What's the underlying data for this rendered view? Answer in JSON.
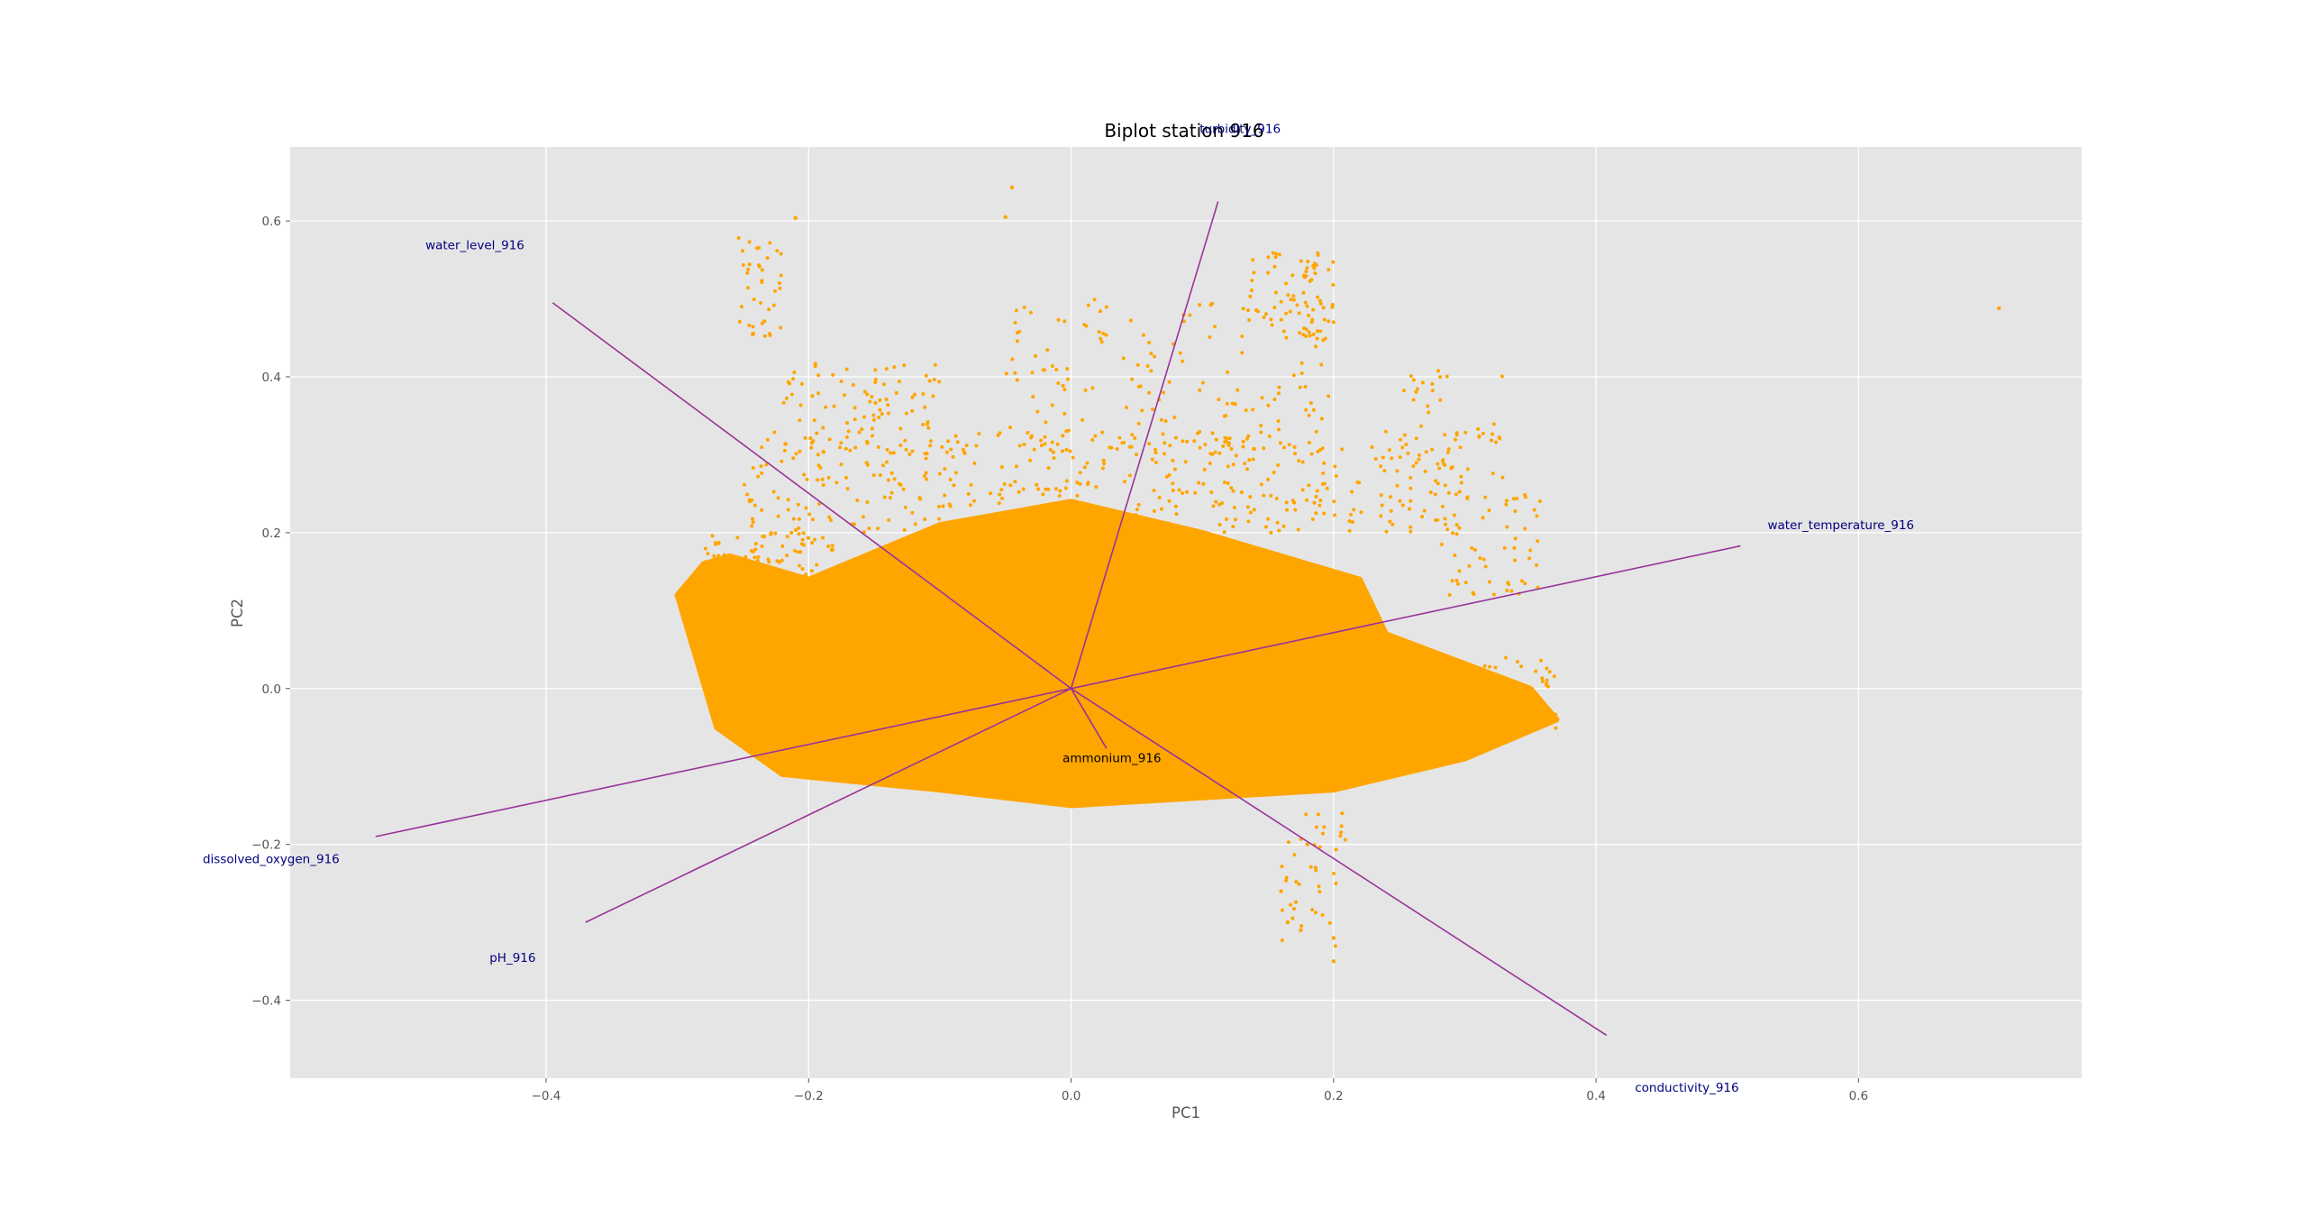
{
  "chart_data": {
    "type": "scatter",
    "title": "Biplot station 916",
    "xlabel": "PC1",
    "ylabel": "PC2",
    "xlim": [
      -0.595,
      0.77
    ],
    "ylim": [
      -0.5,
      0.695
    ],
    "xticks": [
      -0.4,
      -0.2,
      0.0,
      0.2,
      0.4,
      0.6
    ],
    "yticks": [
      -0.4,
      -0.2,
      0.0,
      0.2,
      0.4,
      0.6
    ],
    "xtick_labels": [
      "−0.4",
      "−0.2",
      "0.0",
      "0.2",
      "0.4",
      "0.6"
    ],
    "ytick_labels": [
      "−0.4",
      "−0.2",
      "0.0",
      "0.2",
      "0.4",
      "0.6"
    ],
    "grid": true,
    "background": "#e5e5e5",
    "point_color": "#ffa500",
    "vector_color": "#993399",
    "vector_label_color": "#000080",
    "vectors": [
      {
        "name": "water_level_916",
        "x": -0.395,
        "y": 0.495
      },
      {
        "name": "turbidity_916",
        "x": 0.112,
        "y": 0.625
      },
      {
        "name": "water_temperature_916",
        "x": 0.51,
        "y": 0.183
      },
      {
        "name": "dissolved_oxygen_916",
        "x": -0.53,
        "y": -0.19
      },
      {
        "name": "pH_916",
        "x": -0.37,
        "y": -0.3
      },
      {
        "name": "conductivity_916",
        "x": 0.408,
        "y": -0.445
      },
      {
        "name": "ammonium_916",
        "x": 0.027,
        "y": -0.077
      }
    ],
    "scatter_shape": [
      [
        -0.28,
        0.16
      ],
      [
        -0.3,
        0.12
      ],
      [
        -0.27,
        -0.05
      ],
      [
        -0.22,
        -0.11
      ],
      [
        -0.1,
        -0.13
      ],
      [
        0.0,
        -0.15
      ],
      [
        0.1,
        -0.14
      ],
      [
        0.2,
        -0.13
      ],
      [
        0.3,
        -0.09
      ],
      [
        0.37,
        -0.04
      ],
      [
        0.35,
        0.0
      ],
      [
        0.24,
        0.07
      ],
      [
        0.22,
        0.14
      ],
      [
        0.1,
        0.2
      ],
      [
        0.0,
        0.24
      ],
      [
        -0.1,
        0.21
      ],
      [
        -0.2,
        0.14
      ],
      [
        -0.26,
        0.17
      ]
    ],
    "outlier_points": [
      [
        -0.045,
        0.643
      ],
      [
        -0.05,
        0.605
      ],
      [
        0.707,
        0.488
      ],
      [
        -0.21,
        0.604
      ],
      [
        0.16,
        -0.26
      ],
      [
        0.165,
        -0.3
      ],
      [
        0.175,
        -0.31
      ],
      [
        0.2,
        -0.32
      ],
      [
        0.2,
        -0.35
      ],
      [
        0.18,
        -0.2
      ]
    ]
  }
}
